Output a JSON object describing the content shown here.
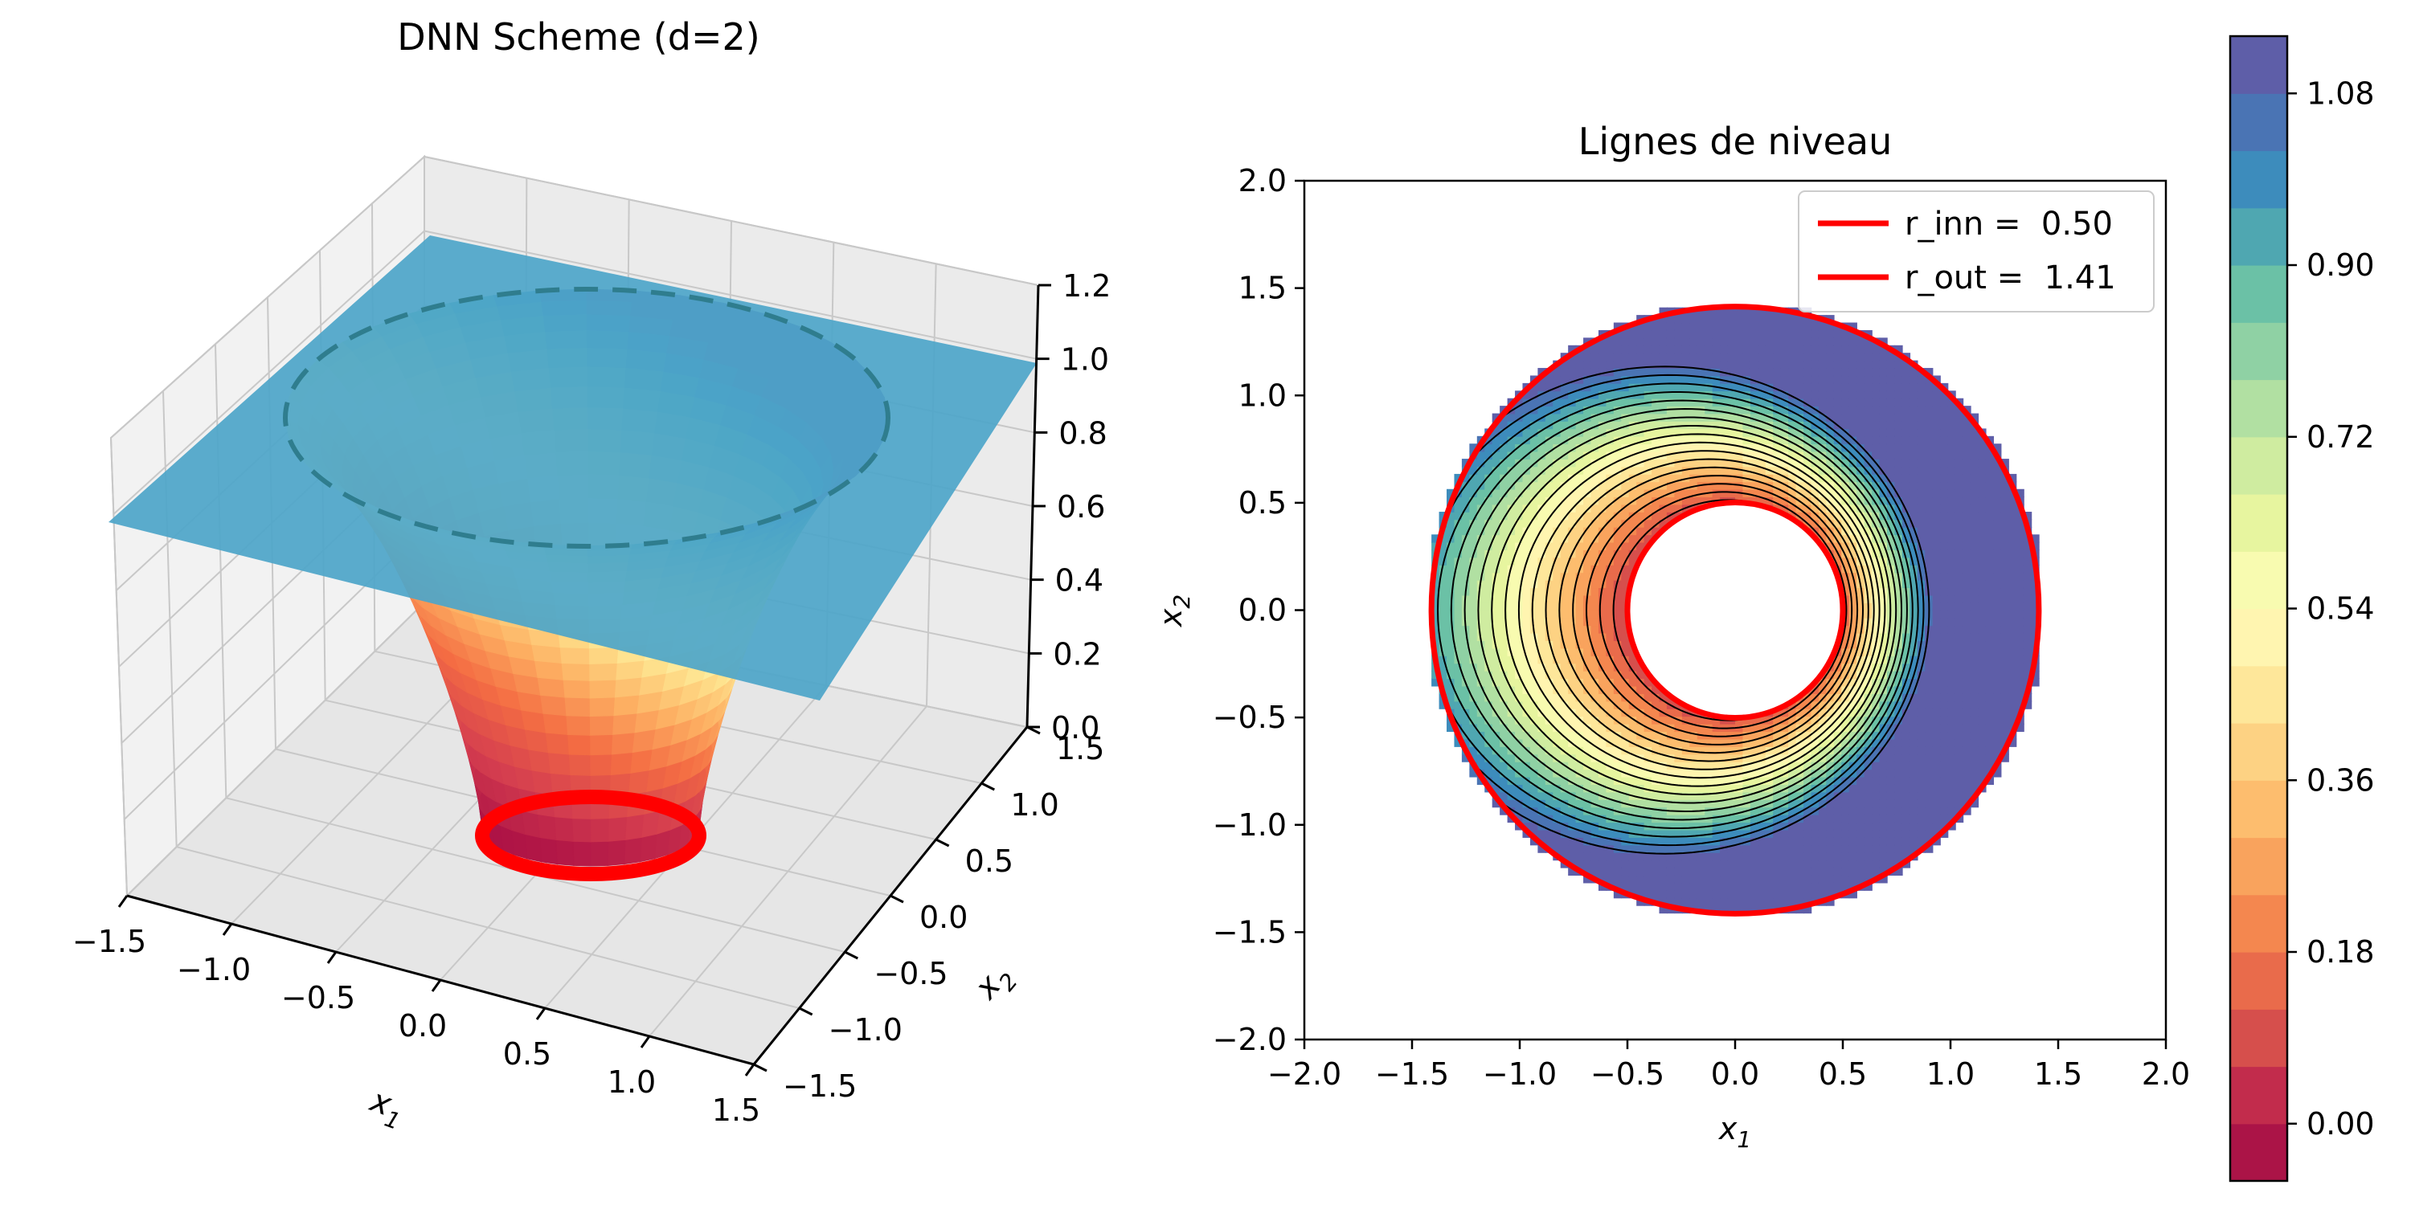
{
  "chart_data": [
    {
      "type": "surface3d",
      "title": "DNN Scheme (d=2)",
      "xlabel": "x1",
      "ylabel": "x2",
      "x_ticks": [
        "−1.5",
        "−1.0",
        "−0.5",
        "0.0",
        "0.5",
        "1.0",
        "1.5"
      ],
      "y_ticks": [
        "1.5",
        "1.0",
        "0.5",
        "0.0",
        "−0.5",
        "−1.0",
        "−1.5"
      ],
      "z_ticks": [
        "1.2",
        "1.0",
        "0.8",
        "0.6",
        "0.4",
        "0.2",
        "0.0"
      ],
      "xlim": [
        -1.5,
        1.5
      ],
      "ylim": [
        -1.5,
        1.5
      ],
      "zlim": [
        0,
        1.2
      ],
      "r_inn": 0.5,
      "r_out": 1.41,
      "outer_value": 1.0,
      "colormap": "Spectral",
      "boundary_color": "#ff0000"
    },
    {
      "type": "contour",
      "title": "Lignes de niveau",
      "xlabel": "x1",
      "ylabel": "x2",
      "xlim": [
        -2.0,
        2.0
      ],
      "ylim": [
        -2.0,
        2.0
      ],
      "x_ticks": [
        "−2.0",
        "−1.5",
        "−1.0",
        "−0.5",
        "0.0",
        "0.5",
        "1.0",
        "1.5",
        "2.0"
      ],
      "y_ticks": [
        "2.0",
        "1.5",
        "1.0",
        "0.5",
        "0.0",
        "−0.5",
        "−1.0",
        "−1.5",
        "−2.0"
      ],
      "r_inn": 0.5,
      "r_out": 1.41,
      "legend_position": "top-right",
      "legend": [
        {
          "label": "r_inn =  0.50",
          "color": "#ff0000"
        },
        {
          "label": "r_out =  1.41",
          "color": "#ff0000"
        }
      ],
      "colorbar": {
        "ticks": [
          "1.08",
          "0.90",
          "0.72",
          "0.54",
          "0.36",
          "0.18",
          "0.00"
        ],
        "tick_values": [
          1.08,
          0.9,
          0.72,
          0.54,
          0.36,
          0.18,
          0.0
        ],
        "range": [
          -0.06,
          1.14
        ],
        "levels": 20,
        "colors": [
          "#ab1447",
          "#c22c4c",
          "#d64f4c",
          "#e96b4b",
          "#f4874f",
          "#f9a35d",
          "#fdbd6e",
          "#fdd283",
          "#fee79a",
          "#fff5b0",
          "#f8fbb0",
          "#e7f59f",
          "#cfeca0",
          "#b1e0a2",
          "#8fd1a4",
          "#6bc1a6",
          "#4fa7b1",
          "#3d8cbc",
          "#4a74b4",
          "#5e5ea8"
        ]
      }
    }
  ]
}
